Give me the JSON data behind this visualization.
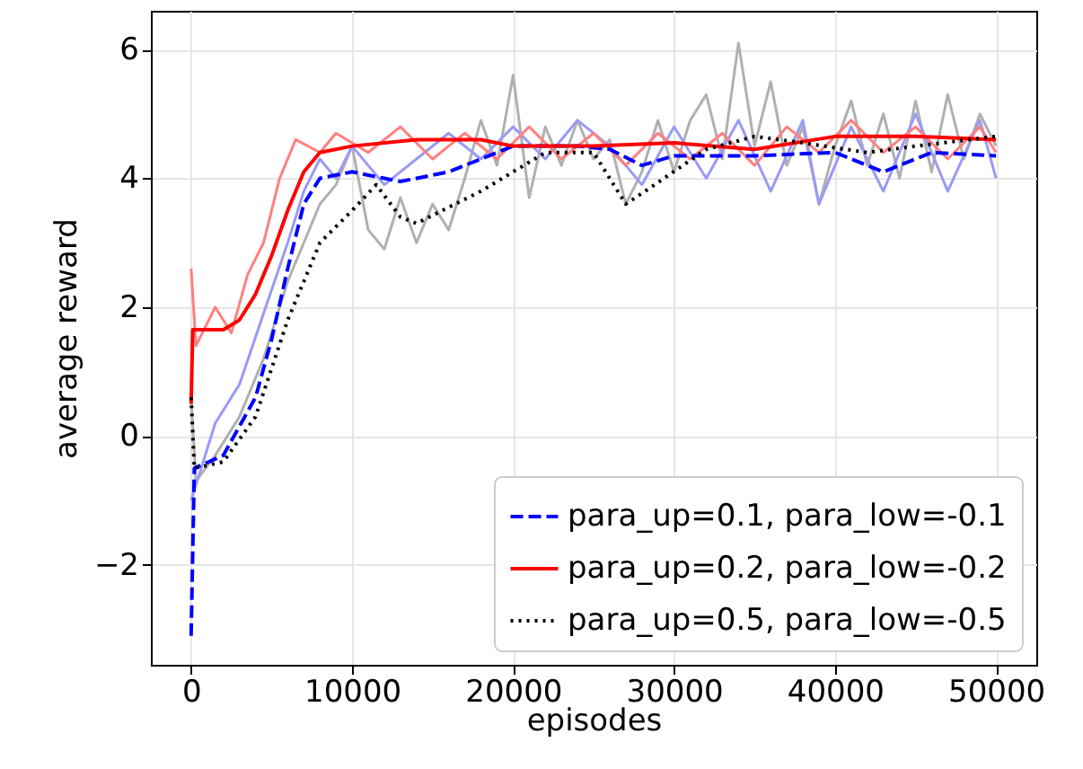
{
  "chart_data": {
    "type": "line",
    "xlabel": "episodes",
    "ylabel": "average reward",
    "xlim": [
      -2500,
      52500
    ],
    "ylim": [
      -3.55,
      6.6
    ],
    "xticks": [
      0,
      10000,
      20000,
      30000,
      40000,
      50000
    ],
    "yticks": [
      -2,
      0,
      2,
      4,
      6
    ],
    "grid": true,
    "legend": "bottom right",
    "series": [
      {
        "color": "#b0b0b0",
        "x": [
          0,
          300,
          1500,
          3000,
          4500,
          6000,
          7000,
          8000,
          9000,
          10000,
          11000,
          12000,
          13000,
          14000,
          15000,
          16000,
          17000,
          18000,
          19000,
          20000,
          21000,
          22000,
          23000,
          24000,
          25000,
          26000,
          27000,
          28000,
          29000,
          30000,
          31000,
          32000,
          33000,
          34000,
          35000,
          36000,
          37000,
          38000,
          39000,
          40000,
          41000,
          42000,
          43000,
          44000,
          45000,
          46000,
          47000,
          48000,
          49000,
          50000
        ],
        "values": [
          0.6,
          -0.7,
          -0.3,
          0.3,
          1.2,
          2.4,
          3.0,
          3.6,
          3.9,
          4.5,
          3.2,
          2.9,
          3.7,
          3.0,
          3.6,
          3.2,
          4.0,
          4.9,
          4.2,
          5.6,
          3.7,
          4.8,
          4.2,
          4.9,
          4.3,
          4.6,
          3.6,
          4.1,
          4.9,
          4.1,
          4.9,
          5.3,
          4.3,
          6.1,
          4.5,
          5.5,
          4.2,
          4.8,
          3.6,
          4.5,
          5.2,
          4.2,
          5.0,
          4.0,
          5.2,
          4.1,
          5.3,
          4.3,
          5.0,
          4.5
        ]
      },
      {
        "color": "#9a9af5",
        "x": [
          0,
          500,
          1500,
          3000,
          4500,
          6000,
          7000,
          8000,
          9000,
          10000,
          12000,
          14000,
          16000,
          18000,
          20000,
          22000,
          24000,
          26000,
          28000,
          30000,
          32000,
          34000,
          36000,
          38000,
          39000,
          41000,
          43000,
          45000,
          47000,
          49000,
          50000
        ],
        "values": [
          -1.0,
          -0.6,
          0.2,
          0.8,
          1.9,
          3.0,
          3.8,
          4.3,
          4.0,
          4.5,
          3.9,
          4.3,
          4.7,
          4.3,
          4.8,
          4.3,
          4.9,
          4.5,
          3.9,
          4.8,
          4.0,
          4.9,
          3.8,
          4.9,
          3.6,
          4.8,
          3.8,
          5.0,
          3.8,
          4.9,
          4.0
        ]
      },
      {
        "color": "#ff8080",
        "x": [
          0,
          300,
          1500,
          2500,
          3500,
          4500,
          5500,
          6500,
          8000,
          9000,
          11000,
          13000,
          15000,
          17000,
          19000,
          21000,
          23000,
          25000,
          27000,
          29000,
          31000,
          33000,
          35000,
          37000,
          39000,
          41000,
          43000,
          45000,
          47000,
          49000,
          50000
        ],
        "values": [
          2.6,
          1.4,
          2.0,
          1.6,
          2.5,
          3.0,
          4.0,
          4.6,
          4.4,
          4.7,
          4.4,
          4.8,
          4.3,
          4.7,
          4.3,
          4.8,
          4.3,
          4.7,
          4.2,
          4.7,
          4.3,
          4.7,
          4.2,
          4.8,
          4.4,
          4.9,
          4.4,
          4.8,
          4.3,
          4.8,
          4.4
        ]
      },
      {
        "name": "para_up=0.1, para_low=-0.1",
        "color": "#0000ff",
        "line_style": "dashed",
        "x": [
          0,
          200,
          2000,
          4000,
          5000,
          6000,
          7000,
          8000,
          10000,
          12000,
          13000,
          16000,
          20000,
          24000,
          26000,
          28000,
          30000,
          35000,
          40000,
          43000,
          46000,
          50000
        ],
        "values": [
          -3.1,
          -0.5,
          -0.3,
          0.6,
          1.5,
          2.6,
          3.6,
          4.0,
          4.1,
          4.0,
          3.95,
          4.1,
          4.5,
          4.5,
          4.45,
          4.2,
          4.35,
          4.35,
          4.4,
          4.1,
          4.4,
          4.35
        ]
      },
      {
        "name": "para_up=0.2, para_low=-0.2",
        "color": "#ff0000",
        "line_style": "solid",
        "x": [
          0,
          100,
          2000,
          3000,
          4000,
          5000,
          6000,
          7000,
          8000,
          10000,
          14000,
          18000,
          20000,
          25000,
          30000,
          35000,
          40000,
          45000,
          50000
        ],
        "values": [
          0.5,
          1.65,
          1.65,
          1.8,
          2.2,
          2.8,
          3.5,
          4.1,
          4.4,
          4.5,
          4.6,
          4.6,
          4.5,
          4.5,
          4.55,
          4.45,
          4.65,
          4.65,
          4.6
        ]
      },
      {
        "name": "para_up=0.5, para_low=-0.5",
        "color": "#000000",
        "line_style": "dotted",
        "x": [
          0,
          200,
          2000,
          4000,
          6000,
          8000,
          10000,
          11500,
          13000,
          14000,
          18000,
          22000,
          25000,
          27000,
          28500,
          32000,
          35000,
          38000,
          42000,
          45000,
          50000
        ],
        "values": [
          0.6,
          -0.5,
          -0.4,
          0.3,
          1.8,
          3.0,
          3.5,
          3.9,
          3.4,
          3.3,
          3.8,
          4.4,
          4.4,
          3.6,
          3.85,
          4.45,
          4.65,
          4.55,
          4.4,
          4.5,
          4.65
        ]
      }
    ]
  }
}
